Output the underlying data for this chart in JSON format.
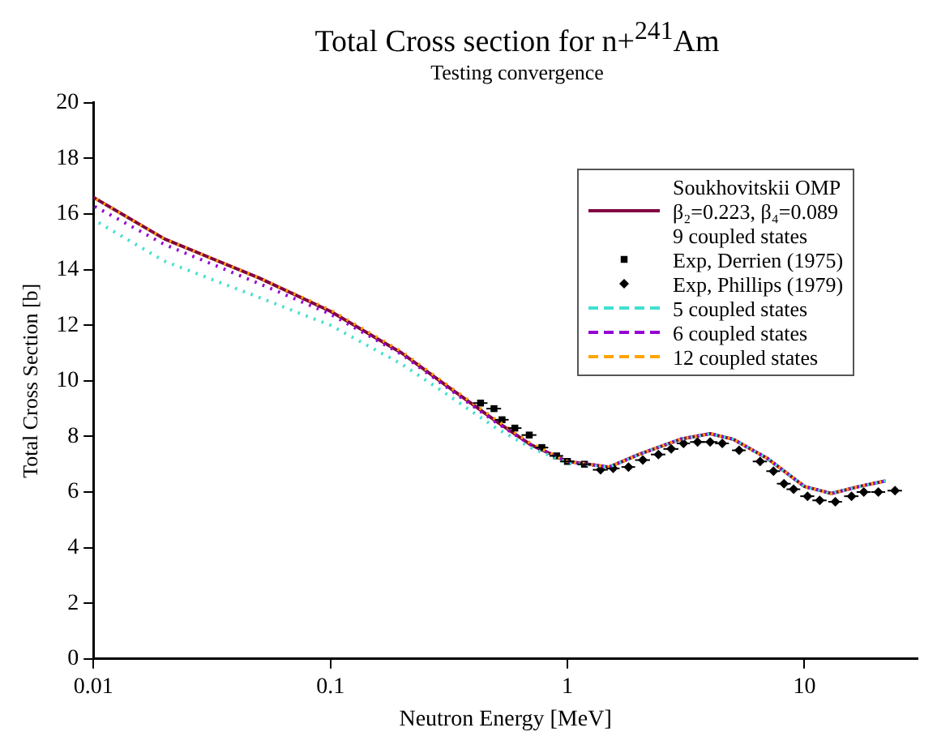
{
  "chart_data": {
    "type": "line",
    "title": "Total Cross section for n+$^{241}$Am",
    "subtitle": "Testing convergence",
    "xlabel": "Neutron Energy [MeV]",
    "ylabel": "Total Cross Section [b]",
    "log": "x",
    "xlim": [
      0.01,
      30
    ],
    "xticks": [
      0.01,
      0.1,
      1,
      10
    ],
    "ylim": [
      0,
      20
    ],
    "yticks": [
      0,
      2,
      4,
      6,
      8,
      10,
      12,
      14,
      16,
      18,
      20
    ],
    "grid": false,
    "legend": "top right",
    "series": [
      {
        "name": "Soukhovitskii OMP\nβ₂=0.223, β₄=0.089\n9 coupled states",
        "type": "line",
        "color": "#800040",
        "line_style": "solid",
        "x": [
          0.01,
          0.02,
          0.05,
          0.1,
          0.2,
          0.3,
          0.5,
          0.7,
          1,
          1.5,
          2,
          3,
          4,
          5,
          7,
          10,
          13,
          17,
          22
        ],
        "values": [
          16.6,
          15.1,
          13.7,
          12.5,
          11.0,
          9.9,
          8.55,
          7.7,
          7.1,
          6.9,
          7.35,
          7.9,
          8.1,
          7.9,
          7.2,
          6.2,
          5.95,
          6.2,
          6.4
        ]
      },
      {
        "name": "Exp, Derrien (1975)",
        "type": "scatter",
        "color": "#000000",
        "marker": "square",
        "x": [
          0.43,
          0.49,
          0.53,
          0.6,
          0.69,
          0.78,
          0.9,
          1.0,
          1.18
        ],
        "values": [
          9.2,
          9.0,
          8.6,
          8.3,
          8.05,
          7.6,
          7.3,
          7.1,
          7.0
        ],
        "xerrors": [
          0.03,
          0.035,
          0.035,
          0.04,
          0.05,
          0.05,
          0.06,
          0.07,
          0.08
        ]
      },
      {
        "name": "Exp, Phillips (1979)",
        "type": "scatter",
        "color": "#000000",
        "marker": "diamond",
        "x": [
          1.38,
          1.56,
          1.81,
          2.08,
          2.42,
          2.74,
          3.09,
          3.54,
          4.0,
          4.5,
          5.3,
          6.5,
          7.4,
          8.2,
          9.0,
          10.3,
          11.6,
          13.5,
          15.8,
          17.8,
          20.5,
          24.1
        ],
        "values": [
          6.8,
          6.85,
          6.9,
          7.15,
          7.35,
          7.55,
          7.75,
          7.8,
          7.8,
          7.75,
          7.5,
          7.1,
          6.75,
          6.3,
          6.1,
          5.85,
          5.7,
          5.65,
          5.85,
          6.0,
          6.0,
          6.05
        ],
        "xerrors": [
          0.1,
          0.1,
          0.12,
          0.15,
          0.17,
          0.2,
          0.2,
          0.25,
          0.3,
          0.3,
          0.35,
          0.45,
          0.5,
          0.55,
          0.6,
          0.7,
          0.8,
          0.9,
          1.1,
          1.2,
          1.4,
          1.7
        ]
      },
      {
        "name": "5 coupled states",
        "type": "line",
        "color": "#40e0d0",
        "line_style": "dashed",
        "x": [
          0.01,
          0.02,
          0.05,
          0.1,
          0.2,
          0.3,
          0.5,
          0.7,
          1,
          1.5,
          2,
          3,
          4,
          5,
          7,
          10,
          13,
          17,
          22
        ],
        "values": [
          15.8,
          14.3,
          13.0,
          12.0,
          10.6,
          9.6,
          8.3,
          7.6,
          7.05,
          6.9,
          7.35,
          7.9,
          8.1,
          7.9,
          7.2,
          6.2,
          5.95,
          6.2,
          6.4
        ]
      },
      {
        "name": "6 coupled states",
        "type": "line",
        "color": "#9400d3",
        "line_style": "dashed",
        "x": [
          0.01,
          0.02,
          0.05,
          0.1,
          0.2,
          0.3,
          0.5,
          0.7,
          1,
          1.5,
          2,
          3,
          4,
          5,
          7,
          10,
          13,
          17,
          22
        ],
        "values": [
          16.3,
          14.9,
          13.5,
          12.4,
          10.95,
          9.85,
          8.5,
          7.7,
          7.1,
          6.9,
          7.35,
          7.9,
          8.1,
          7.9,
          7.2,
          6.2,
          5.95,
          6.2,
          6.4
        ]
      },
      {
        "name": "12 coupled states",
        "type": "line",
        "color": "#ffa500",
        "line_style": "dashed",
        "x": [
          0.01,
          0.02,
          0.05,
          0.1,
          0.2,
          0.3,
          0.5,
          0.7,
          1,
          1.5,
          2,
          3,
          4,
          5,
          7,
          10,
          13,
          17,
          22
        ],
        "values": [
          16.6,
          15.1,
          13.7,
          12.55,
          11.05,
          9.95,
          8.6,
          7.75,
          7.1,
          6.9,
          7.35,
          7.9,
          8.1,
          7.9,
          7.2,
          6.2,
          5.95,
          6.2,
          6.4
        ]
      }
    ]
  }
}
